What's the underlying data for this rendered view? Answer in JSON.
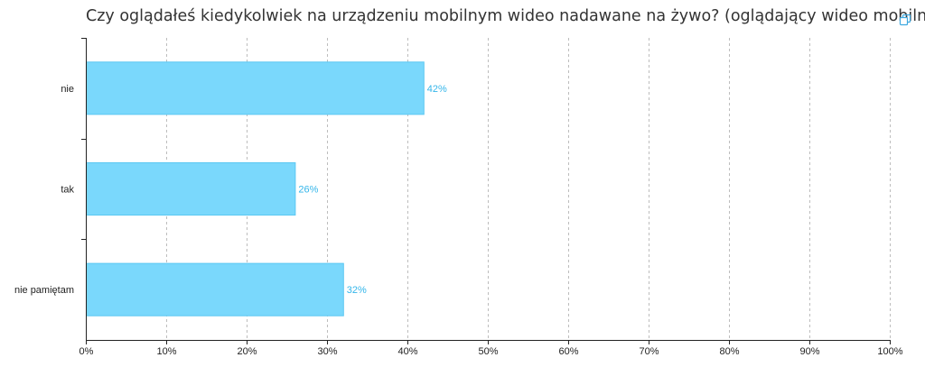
{
  "title": "Czy oglądałeś kiedykolwiek na urządzeniu mobilnym wideo nadawane na żywo? (oglądający wideo mobilnie)",
  "toolbar": {
    "copy_icon": "copy-icon"
  },
  "colors": {
    "bar_fill": "#7ad8fc",
    "bar_stroke": "#5cc8f2",
    "data_label": "#35b6ea",
    "grid": "#bdbdbd",
    "axis": "#222222",
    "icon": "#3fa9e0"
  },
  "chart_data": {
    "type": "bar",
    "orientation": "horizontal",
    "categories": [
      "nie",
      "tak",
      "nie pamiętam"
    ],
    "values": [
      42,
      26,
      32
    ],
    "data_labels": [
      "42%",
      "26%",
      "32%"
    ],
    "xlim": [
      0,
      100
    ],
    "xticks": [
      "0%",
      "10%",
      "20%",
      "30%",
      "40%",
      "50%",
      "60%",
      "70%",
      "80%",
      "90%",
      "100%"
    ],
    "grid": "vertical dashed",
    "legend": "none",
    "xlabel": "",
    "ylabel": ""
  }
}
